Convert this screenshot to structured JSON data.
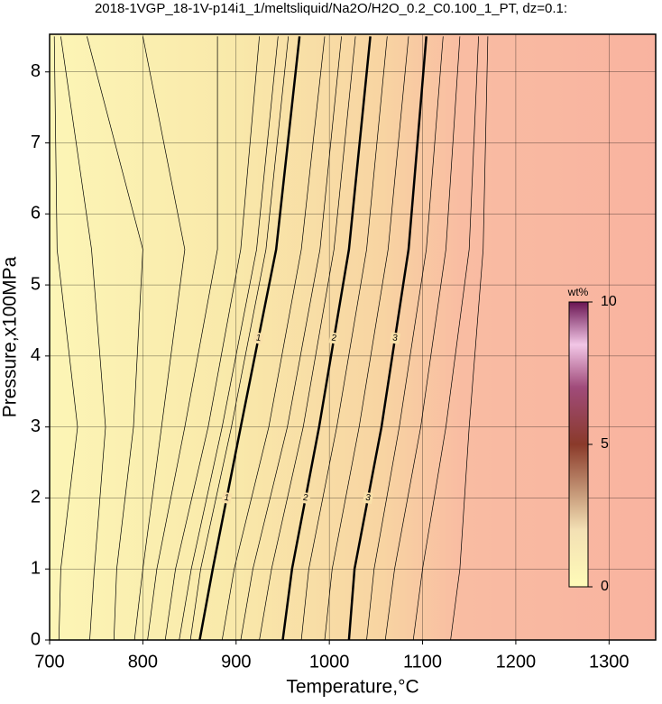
{
  "chart_data": {
    "type": "contour",
    "title": "2018-1VGP_18-1V-p14i1_1/meltsliquid/Na2O/H2O_0.2_C0.100_1_PT, dz=0.1:",
    "x_label": "Temperature,°C",
    "y_label": "Pressure,x100MPa",
    "xlim": [
      700,
      1350
    ],
    "ylim": [
      0,
      8.53
    ],
    "xticks": [
      700,
      800,
      900,
      1000,
      1100,
      1200,
      1300
    ],
    "yticks": [
      0,
      1,
      2,
      3,
      4,
      5,
      6,
      7,
      8
    ],
    "grid": true,
    "pressure": [
      0,
      1,
      3,
      5.5,
      8.5
    ],
    "contours": [
      {
        "temperature": [
          710,
          712,
          730,
          708,
          705
        ]
      },
      {
        "temperature": [
          743,
          748,
          760,
          745,
          712
        ]
      },
      {
        "temperature": [
          769,
          772,
          790,
          800,
          740
        ]
      },
      {
        "temperature": [
          791,
          800,
          820,
          845,
          800
        ]
      },
      {
        "temperature": [
          805,
          815,
          845,
          880,
          880
        ]
      },
      {
        "temperature": [
          824,
          835,
          870,
          905,
          925
        ]
      },
      {
        "temperature": [
          839,
          852,
          885,
          922,
          945
        ]
      },
      {
        "temperature": [
          851,
          862,
          895,
          932,
          956
        ]
      },
      {
        "label": "1",
        "temperature": [
          861,
          875,
          905,
          943,
          968
        ]
      },
      {
        "temperature": [
          885,
          898,
          935,
          970,
          995
        ]
      },
      {
        "temperature": [
          905,
          918,
          955,
          990,
          1013
        ]
      },
      {
        "temperature": [
          925,
          938,
          972,
          1005,
          1028
        ]
      },
      {
        "label": "2",
        "temperature": [
          950,
          960,
          989,
          1021,
          1044
        ]
      },
      {
        "temperature": [
          970,
          978,
          1008,
          1040,
          1062
        ]
      },
      {
        "temperature": [
          995,
          1003,
          1032,
          1063,
          1085
        ]
      },
      {
        "label": "3",
        "temperature": [
          1021,
          1027,
          1056,
          1085,
          1104
        ]
      },
      {
        "temperature": [
          1040,
          1048,
          1075,
          1104,
          1122
        ]
      },
      {
        "temperature": [
          1060,
          1070,
          1098,
          1125,
          1140
        ]
      },
      {
        "temperature": [
          1090,
          1100,
          1125,
          1150,
          1160
        ]
      },
      {
        "temperature": [
          1130,
          1140,
          1150,
          1165,
          1170
        ]
      }
    ],
    "colorbar": {
      "label": "wt%",
      "lim": [
        0,
        10
      ],
      "ticks": [
        0,
        5,
        10
      ]
    }
  }
}
